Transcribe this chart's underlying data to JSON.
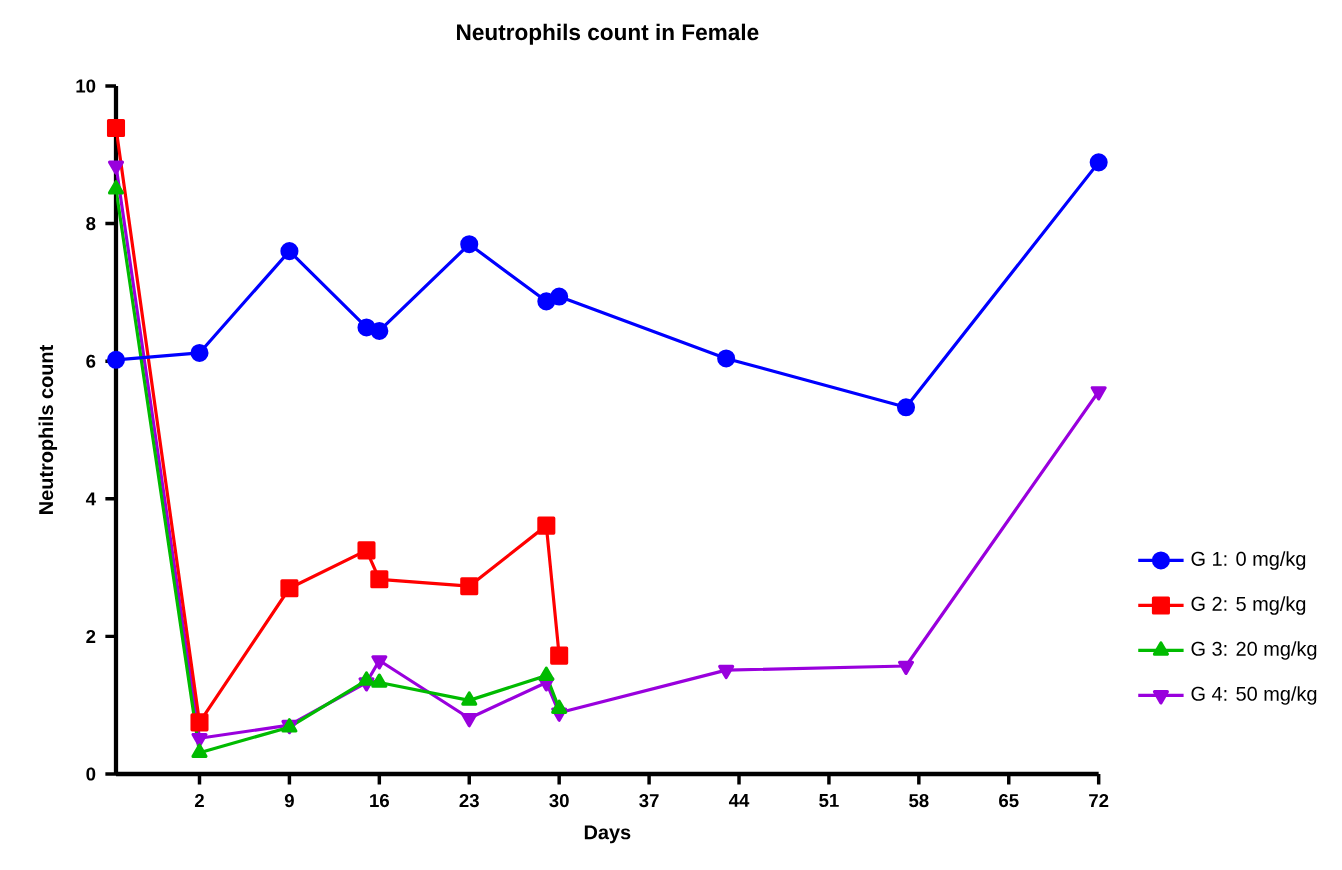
{
  "chart_data": {
    "type": "line",
    "title": "Neutrophils count in Female",
    "xlabel": "Days",
    "ylabel": "Neutrophils count",
    "xlim": [
      -4.5,
      72
    ],
    "xticks": [
      2,
      9,
      16,
      23,
      30,
      37,
      44,
      51,
      58,
      65,
      72
    ],
    "ylim": [
      0,
      10
    ],
    "yticks": [
      0,
      2,
      4,
      6,
      8,
      10
    ],
    "grid": false,
    "legend": "right",
    "line_style": "solid",
    "series": [
      {
        "name": "G 1: 0 mg/kg",
        "color": "#0000ff",
        "marker": "circle",
        "x": [
          -4.5,
          2,
          9,
          15,
          16,
          23,
          29,
          30,
          43,
          57,
          72
        ],
        "values": [
          6.02,
          6.12,
          7.6,
          6.49,
          6.44,
          7.7,
          6.87,
          6.94,
          6.04,
          5.33,
          8.89
        ]
      },
      {
        "name": "G 2: 5 mg/kg",
        "color": "#ff0000",
        "marker": "square",
        "x": [
          -4.5,
          2,
          9,
          15,
          16,
          23,
          29,
          30
        ],
        "values": [
          9.39,
          0.75,
          2.7,
          3.25,
          2.83,
          2.73,
          3.61,
          1.72
        ]
      },
      {
        "name": "G 3: 20 mg/kg",
        "color": "#00bb00",
        "marker": "triangle",
        "x": [
          -4.5,
          2,
          9,
          15,
          16,
          23,
          29,
          30
        ],
        "values": [
          8.5,
          0.31,
          0.68,
          1.36,
          1.33,
          1.07,
          1.43,
          0.95
        ]
      },
      {
        "name": "G 4: 50 mg/kg",
        "color": "#9900dd",
        "marker": "triangle down",
        "x": [
          -4.5,
          2,
          9,
          15,
          16,
          23,
          29,
          30,
          43,
          57,
          72
        ],
        "values": [
          8.84,
          0.52,
          0.71,
          1.33,
          1.65,
          0.81,
          1.33,
          0.89,
          1.51,
          1.57,
          5.56
        ]
      }
    ]
  }
}
